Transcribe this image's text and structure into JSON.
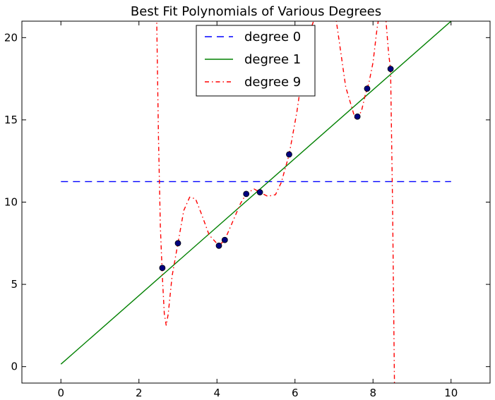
{
  "chart_data": {
    "type": "line",
    "title": "Best Fit Polynomials of Various Degrees",
    "xlabel": "",
    "ylabel": "",
    "xlim": [
      -1,
      11
    ],
    "ylim": [
      -1,
      21
    ],
    "xticks": [
      0,
      2,
      4,
      6,
      8,
      10
    ],
    "yticks": [
      0,
      5,
      10,
      15,
      20
    ],
    "grid": false,
    "legend_position": "top-center",
    "points": {
      "color": "#000080",
      "x": [
        2.6,
        3.0,
        4.05,
        4.2,
        4.75,
        5.1,
        5.85,
        7.6,
        7.85,
        8.45
      ],
      "y": [
        6.0,
        7.5,
        7.35,
        7.7,
        10.5,
        10.6,
        12.9,
        15.2,
        16.9,
        18.1
      ]
    },
    "series": [
      {
        "name": "degree 0",
        "color": "#0000ff",
        "style": "dashed",
        "x": [
          0,
          10
        ],
        "y": [
          11.25,
          11.25
        ]
      },
      {
        "name": "degree 1",
        "color": "#008000",
        "style": "solid",
        "x": [
          0,
          10
        ],
        "y": [
          0.15,
          21.0
        ]
      },
      {
        "name": "degree 9",
        "color": "#ff0000",
        "style": "dashdot",
        "x": [
          2.45,
          2.5,
          2.55,
          2.6,
          2.65,
          2.7,
          2.75,
          2.85,
          3.0,
          3.15,
          3.3,
          3.45,
          3.6,
          3.8,
          4.05,
          4.2,
          4.4,
          4.6,
          4.75,
          4.95,
          5.1,
          5.3,
          5.5,
          5.65,
          5.85,
          6.05,
          6.2,
          6.4,
          6.7,
          7.0,
          7.3,
          7.55,
          7.6,
          7.7,
          7.8,
          7.85,
          7.9,
          8.0,
          8.1,
          8.2,
          8.3,
          8.4,
          8.45,
          8.5,
          8.55
        ],
        "y": [
          22.0,
          14.0,
          8.5,
          5.5,
          3.2,
          2.5,
          3.2,
          5.5,
          7.5,
          9.5,
          10.3,
          10.2,
          9.3,
          8.0,
          7.35,
          7.7,
          8.8,
          9.9,
          10.5,
          10.8,
          10.6,
          10.35,
          10.45,
          11.2,
          12.9,
          15.5,
          18.0,
          20.5,
          22.5,
          22.0,
          17.0,
          15.0,
          15.2,
          15.5,
          16.5,
          16.9,
          17.3,
          18.5,
          20.5,
          22.0,
          22.0,
          19.0,
          18.1,
          10.0,
          -1.0
        ]
      }
    ]
  }
}
